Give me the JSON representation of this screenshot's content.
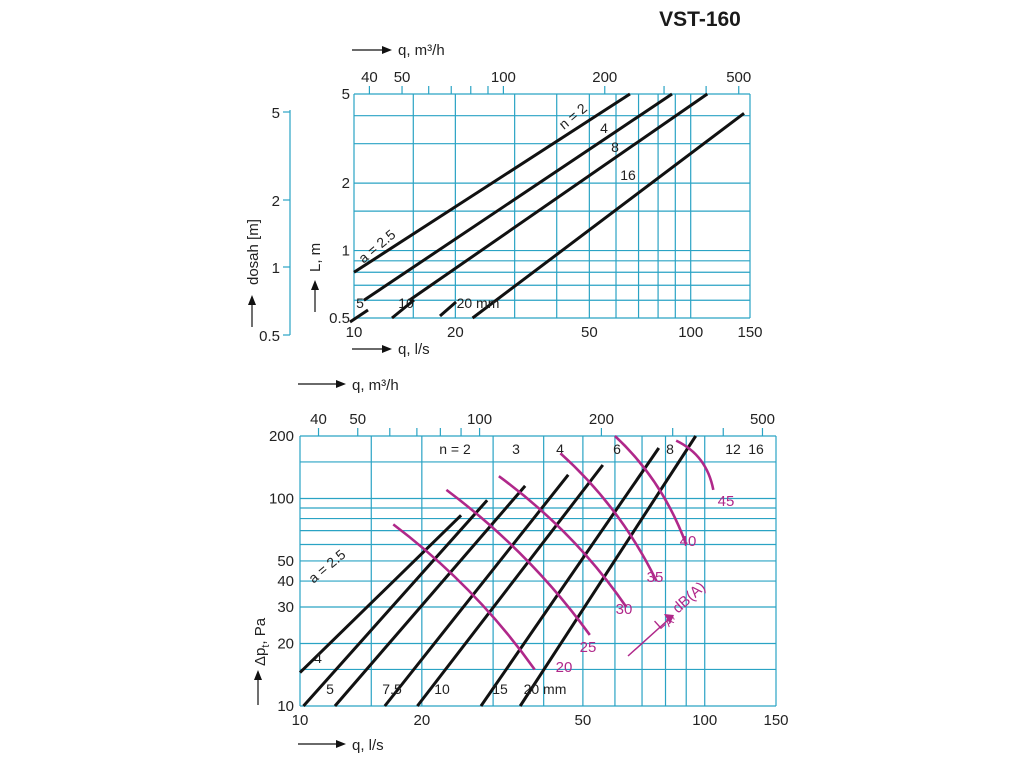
{
  "title": "VST-160",
  "colors": {
    "grid": "#2aa3c4",
    "curve": "#111111",
    "sound": "#b0288a"
  },
  "chart_data": [
    {
      "type": "line",
      "name": "throw-chart",
      "scale": "log-log",
      "x_bottom": {
        "label": "q, l/s",
        "ticks": [
          "10",
          "20",
          "50",
          "100",
          "150"
        ],
        "range": [
          10,
          150
        ]
      },
      "x_top": {
        "label": "q, m³/h",
        "ticks": [
          "40",
          "50",
          "100",
          "200",
          "500"
        ]
      },
      "y_left": {
        "label": "L, m",
        "ticks": [
          "0.5",
          "1",
          "2",
          "5"
        ],
        "range": [
          0.5,
          5
        ]
      },
      "y_outer": {
        "label": "dosah [m]",
        "ticks": [
          "0.5",
          "1",
          "2",
          "5"
        ],
        "range": [
          0.5,
          5
        ]
      },
      "n_curve_labels": [
        "n = 2",
        "4",
        "8",
        "16"
      ],
      "a_curve_labels": [
        "a = 2.5",
        "5",
        "10",
        "20 mm"
      ],
      "series": [
        {
          "name": "n = 2",
          "x": [
            10,
            66
          ],
          "y": [
            0.8,
            5
          ]
        },
        {
          "name": "n = 4",
          "x": [
            10.7,
            88
          ],
          "y": [
            0.6,
            5
          ]
        },
        {
          "name": "n = 8",
          "x": [
            14.6,
            112
          ],
          "y": [
            0.6,
            5
          ]
        },
        {
          "name": "n = 16",
          "x": [
            22.5,
            144
          ],
          "y": [
            0.5,
            4.1
          ]
        }
      ]
    },
    {
      "type": "line",
      "name": "pressure-noise-chart",
      "scale": "log-log",
      "x_bottom": {
        "label": "q, l/s",
        "ticks": [
          "10",
          "20",
          "50",
          "100",
          "150"
        ],
        "range": [
          10,
          150
        ]
      },
      "x_top": {
        "label": "q, m³/h",
        "ticks": [
          "40",
          "50",
          "100",
          "200",
          "500"
        ]
      },
      "y_left": {
        "label": "Δpt, Pa",
        "label_main": "Δp",
        "label_sub": "t",
        "label_tail": ", Pa",
        "ticks": [
          "10",
          "20",
          "30",
          "40",
          "50",
          "100",
          "200"
        ],
        "range": [
          10,
          200
        ]
      },
      "n_curve_labels": [
        "n = 2",
        "3",
        "4",
        "6",
        "8",
        "12",
        "16"
      ],
      "a_curve_labels": [
        "a = 2.5",
        "4",
        "5",
        "7.5",
        "10",
        "15",
        "20 mm"
      ],
      "sound_axis_label": "LA, dB(A)",
      "sound_axis_main": "L",
      "sound_axis_sub": "A",
      "sound_axis_tail": ", dB(A)",
      "sound_labels": [
        "20",
        "25",
        "30",
        "35",
        "40",
        "45"
      ],
      "series": [
        {
          "name": "a = 2.5",
          "x": [
            10,
            25
          ],
          "y": [
            14.5,
            83
          ]
        },
        {
          "name": "4",
          "x": [
            10.2,
            29
          ],
          "y": [
            10,
            98
          ]
        },
        {
          "name": "5",
          "x": [
            12.2,
            36
          ],
          "y": [
            10,
            115
          ]
        },
        {
          "name": "7.5",
          "x": [
            16.2,
            46
          ],
          "y": [
            10,
            130
          ]
        },
        {
          "name": "10",
          "x": [
            19.5,
            56
          ],
          "y": [
            10,
            145
          ]
        },
        {
          "name": "15",
          "x": [
            28,
            77
          ],
          "y": [
            10,
            175
          ]
        },
        {
          "name": "20 mm",
          "x": [
            35,
            95
          ],
          "y": [
            10,
            200
          ]
        }
      ],
      "sound_series": [
        {
          "name": "20",
          "x": [
            17,
            38
          ],
          "y": [
            75,
            15
          ]
        },
        {
          "name": "25",
          "x": [
            23,
            52
          ],
          "y": [
            110,
            22
          ]
        },
        {
          "name": "30",
          "x": [
            31,
            64
          ],
          "y": [
            128,
            30
          ]
        },
        {
          "name": "35",
          "x": [
            44,
            76
          ],
          "y": [
            165,
            40
          ]
        },
        {
          "name": "40",
          "x": [
            60,
            90
          ],
          "y": [
            200,
            60
          ]
        },
        {
          "name": "45",
          "x": [
            85,
            105
          ],
          "y": [
            190,
            110
          ]
        }
      ]
    }
  ]
}
